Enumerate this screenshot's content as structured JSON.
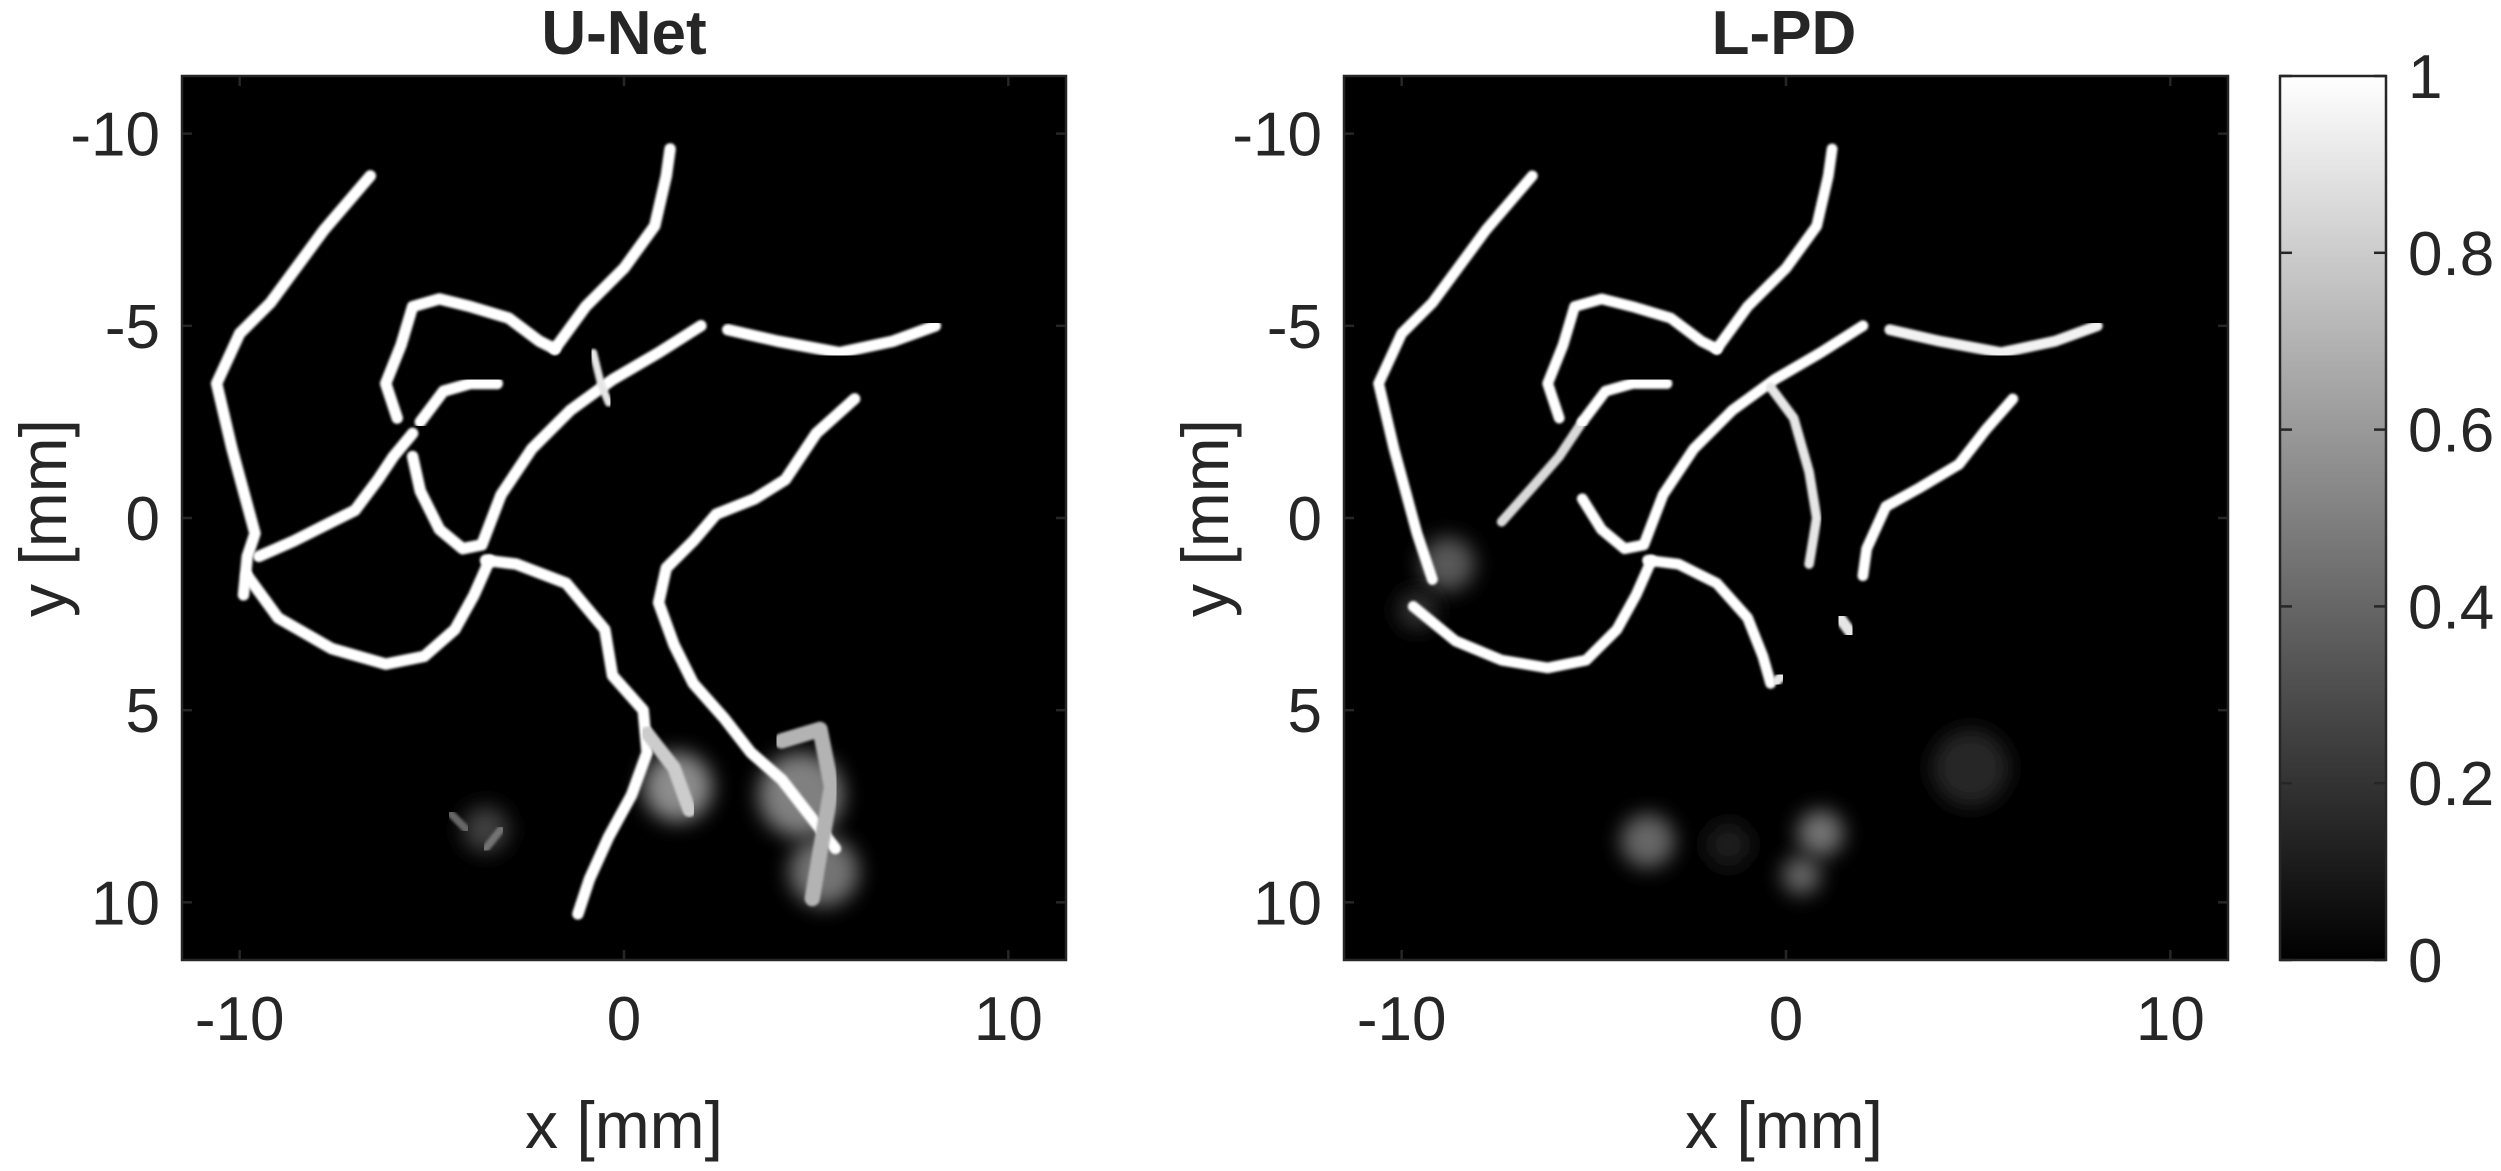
{
  "figure": {
    "background": "#ffffff",
    "image_bg": "#000000",
    "vessel_color": "#ffffff",
    "axis_color": "#262626"
  },
  "chart_data": [
    {
      "type": "heatmap",
      "title": "U-Net",
      "xlabel": "x [mm]",
      "ylabel": "y [mm]",
      "xlim": [
        -11.5,
        11.5
      ],
      "ylim": [
        -11.5,
        11.5
      ],
      "y_reversed": true,
      "xticks": [
        -10,
        0,
        10
      ],
      "xtick_labels": [
        "-10",
        "0",
        "10"
      ],
      "yticks": [
        -10,
        -5,
        0,
        5,
        10
      ],
      "ytick_labels": [
        "-10",
        "-5",
        "0",
        "5",
        "10"
      ],
      "grid": false,
      "colormap": "gray",
      "clim": [
        0,
        1
      ],
      "vessels": [
        {
          "points": [
            [
              -6.6,
              -8.9
            ],
            [
              -7.8,
              -7.5
            ],
            [
              -9.2,
              -5.6
            ],
            [
              -10.0,
              -4.8
            ],
            [
              -10.6,
              -3.5
            ],
            [
              -10.2,
              -1.8
            ],
            [
              -9.6,
              0.4
            ],
            [
              -9.8,
              1.0
            ],
            [
              -9.9,
              2.0
            ]
          ],
          "intensity": 1.0,
          "width": 0.3
        },
        {
          "points": [
            [
              -9.5,
              1.0
            ],
            [
              -8.6,
              0.6
            ],
            [
              -7.8,
              0.2
            ],
            [
              -7.0,
              -0.2
            ],
            [
              -6.4,
              -1.0
            ],
            [
              -6.0,
              -1.6
            ],
            [
              -5.5,
              -2.2
            ]
          ],
          "intensity": 1.0,
          "width": 0.3
        },
        {
          "points": [
            [
              -9.8,
              1.5
            ],
            [
              -9.0,
              2.6
            ],
            [
              -7.6,
              3.4
            ],
            [
              -6.2,
              3.8
            ],
            [
              -5.2,
              3.6
            ],
            [
              -4.4,
              2.9
            ],
            [
              -3.9,
              2.0
            ],
            [
              -3.5,
              1.1
            ]
          ],
          "intensity": 1.0,
          "width": 0.3
        },
        {
          "points": [
            [
              -3.6,
              1.1
            ],
            [
              -2.8,
              1.2
            ],
            [
              -1.5,
              1.7
            ],
            [
              -0.5,
              2.9
            ],
            [
              -0.3,
              4.1
            ],
            [
              0.5,
              5.0
            ],
            [
              0.6,
              6.1
            ],
            [
              0.2,
              7.2
            ],
            [
              -0.4,
              8.3
            ],
            [
              -0.9,
              9.4
            ],
            [
              -1.2,
              10.3
            ]
          ],
          "intensity": 1.0,
          "width": 0.3
        },
        {
          "points": [
            [
              -5.5,
              -1.6
            ],
            [
              -5.3,
              -0.7
            ],
            [
              -4.8,
              0.3
            ],
            [
              -4.2,
              0.8
            ],
            [
              -3.7,
              0.7
            ],
            [
              -3.2,
              -0.6
            ],
            [
              -2.4,
              -1.8
            ],
            [
              -1.4,
              -2.8
            ],
            [
              -0.3,
              -3.6
            ],
            [
              0.9,
              -4.3
            ],
            [
              2.0,
              -5.0
            ]
          ],
          "intensity": 1.0,
          "width": 0.3
        },
        {
          "points": [
            [
              -5.3,
              -2.5
            ],
            [
              -4.7,
              -3.3
            ],
            [
              -4.0,
              -3.5
            ],
            [
              -3.3,
              -3.5
            ]
          ],
          "intensity": 1.0,
          "width": 0.3
        },
        {
          "points": [
            [
              -5.9,
              -2.6
            ],
            [
              -6.2,
              -3.5
            ],
            [
              -5.8,
              -4.5
            ],
            [
              -5.5,
              -5.5
            ],
            [
              -4.8,
              -5.7
            ],
            [
              -4.0,
              -5.5
            ],
            [
              -3.0,
              -5.2
            ],
            [
              -2.2,
              -4.6
            ],
            [
              -1.8,
              -4.4
            ]
          ],
          "intensity": 1.0,
          "width": 0.3
        },
        {
          "points": [
            [
              -1.8,
              -4.4
            ],
            [
              -1.0,
              -5.5
            ],
            [
              0.0,
              -6.5
            ],
            [
              0.8,
              -7.6
            ],
            [
              1.1,
              -8.9
            ],
            [
              1.2,
              -9.6
            ]
          ],
          "intensity": 1.0,
          "width": 0.3
        },
        {
          "points": [
            [
              -0.8,
              -4.3
            ],
            [
              -0.6,
              -3.5
            ],
            [
              -0.4,
              -3.0
            ]
          ],
          "intensity": 0.9,
          "width": 0.2
        },
        {
          "points": [
            [
              2.7,
              -4.9
            ],
            [
              4.0,
              -4.6
            ],
            [
              5.6,
              -4.3
            ],
            [
              7.0,
              -4.6
            ],
            [
              8.1,
              -5.0
            ]
          ],
          "intensity": 1.0,
          "width": 0.3
        },
        {
          "points": [
            [
              6.0,
              -3.1
            ],
            [
              5.0,
              -2.2
            ],
            [
              4.2,
              -1.0
            ],
            [
              3.4,
              -0.5
            ],
            [
              2.4,
              -0.1
            ],
            [
              1.8,
              0.6
            ],
            [
              1.1,
              1.3
            ],
            [
              0.9,
              2.2
            ],
            [
              1.3,
              3.3
            ],
            [
              1.8,
              4.3
            ],
            [
              2.6,
              5.2
            ],
            [
              3.3,
              6.1
            ],
            [
              4.1,
              6.8
            ],
            [
              4.8,
              7.7
            ],
            [
              5.5,
              8.6
            ]
          ],
          "intensity": 1.0,
          "width": 0.3
        },
        {
          "points": [
            [
              0.6,
              5.6
            ],
            [
              1.3,
              6.5
            ],
            [
              1.7,
              7.6
            ]
          ],
          "intensity": 0.8,
          "width": 0.35
        },
        {
          "points": [
            [
              4.1,
              5.8
            ],
            [
              5.1,
              5.5
            ],
            [
              5.4,
              7.0
            ],
            [
              5.1,
              8.7
            ],
            [
              4.9,
              9.9
            ]
          ],
          "intensity": 0.7,
          "width": 0.4
        },
        {
          "points": [
            [
              -3.2,
              8.1
            ],
            [
              -3.6,
              8.6
            ]
          ],
          "intensity": 0.45,
          "width": 0.2
        },
        {
          "points": [
            [
              -4.5,
              7.7
            ],
            [
              -4.1,
              8.1
            ]
          ],
          "intensity": 0.4,
          "width": 0.2
        }
      ],
      "blobs": [
        {
          "center": [
            1.4,
            7.0
          ],
          "radius": 0.9,
          "intensity": 0.55
        },
        {
          "center": [
            4.6,
            7.2
          ],
          "radius": 1.1,
          "intensity": 0.5
        },
        {
          "center": [
            5.2,
            9.2
          ],
          "radius": 0.9,
          "intensity": 0.45
        },
        {
          "center": [
            -3.6,
            8.1
          ],
          "radius": 0.6,
          "intensity": 0.25
        }
      ]
    },
    {
      "type": "heatmap",
      "title": "L-PD",
      "xlabel": "x [mm]",
      "ylabel": "y [mm]",
      "xlim": [
        -11.5,
        11.5
      ],
      "ylim": [
        -11.5,
        11.5
      ],
      "y_reversed": true,
      "xticks": [
        -10,
        0,
        10
      ],
      "xtick_labels": [
        "-10",
        "0",
        "10"
      ],
      "yticks": [
        -10,
        -5,
        0,
        5,
        10
      ],
      "ytick_labels": [
        "-10",
        "-5",
        "0",
        "5",
        "10"
      ],
      "grid": false,
      "colormap": "gray",
      "clim": [
        0,
        1
      ],
      "vessels": [
        {
          "points": [
            [
              -6.6,
              -8.9
            ],
            [
              -7.8,
              -7.5
            ],
            [
              -9.2,
              -5.6
            ],
            [
              -10.0,
              -4.8
            ],
            [
              -10.6,
              -3.5
            ],
            [
              -10.2,
              -1.8
            ],
            [
              -9.6,
              0.4
            ],
            [
              -9.2,
              1.6
            ]
          ],
          "intensity": 1.0,
          "width": 0.28
        },
        {
          "points": [
            [
              -9.7,
              2.3
            ],
            [
              -8.6,
              3.2
            ],
            [
              -7.4,
              3.7
            ],
            [
              -6.2,
              3.9
            ],
            [
              -5.2,
              3.7
            ],
            [
              -4.4,
              2.9
            ],
            [
              -3.9,
              2.0
            ],
            [
              -3.5,
              1.1
            ]
          ],
          "intensity": 1.0,
          "width": 0.28
        },
        {
          "points": [
            [
              -3.6,
              1.1
            ],
            [
              -2.8,
              1.2
            ],
            [
              -1.8,
              1.7
            ],
            [
              -1.0,
              2.6
            ],
            [
              -0.6,
              3.6
            ],
            [
              -0.4,
              4.3
            ]
          ],
          "intensity": 1.0,
          "width": 0.28
        },
        {
          "points": [
            [
              -5.3,
              -0.5
            ],
            [
              -4.8,
              0.3
            ],
            [
              -4.2,
              0.8
            ],
            [
              -3.7,
              0.7
            ],
            [
              -3.2,
              -0.6
            ],
            [
              -2.4,
              -1.8
            ],
            [
              -1.4,
              -2.8
            ],
            [
              -0.3,
              -3.6
            ],
            [
              0.9,
              -4.3
            ],
            [
              2.0,
              -5.0
            ]
          ],
          "intensity": 1.0,
          "width": 0.28
        },
        {
          "points": [
            [
              -7.4,
              0.1
            ],
            [
              -6.6,
              -0.8
            ],
            [
              -5.9,
              -1.6
            ],
            [
              -5.3,
              -2.5
            ]
          ],
          "intensity": 0.85,
          "width": 0.25
        },
        {
          "points": [
            [
              -5.3,
              -2.5
            ],
            [
              -4.7,
              -3.3
            ],
            [
              -4.0,
              -3.5
            ],
            [
              -3.1,
              -3.5
            ]
          ],
          "intensity": 1.0,
          "width": 0.28
        },
        {
          "points": [
            [
              -5.9,
              -2.6
            ],
            [
              -6.2,
              -3.5
            ],
            [
              -5.8,
              -4.5
            ],
            [
              -5.5,
              -5.5
            ],
            [
              -4.8,
              -5.7
            ],
            [
              -4.0,
              -5.5
            ],
            [
              -3.0,
              -5.2
            ],
            [
              -2.2,
              -4.6
            ],
            [
              -1.8,
              -4.4
            ]
          ],
          "intensity": 1.0,
          "width": 0.28
        },
        {
          "points": [
            [
              -1.8,
              -4.4
            ],
            [
              -1.0,
              -5.5
            ],
            [
              0.0,
              -6.5
            ],
            [
              0.8,
              -7.6
            ],
            [
              1.1,
              -8.9
            ],
            [
              1.2,
              -9.6
            ]
          ],
          "intensity": 1.0,
          "width": 0.28
        },
        {
          "points": [
            [
              -0.4,
              -3.4
            ],
            [
              0.2,
              -2.6
            ],
            [
              0.6,
              -1.2
            ],
            [
              0.8,
              0.0
            ],
            [
              0.6,
              1.2
            ]
          ],
          "intensity": 0.9,
          "width": 0.25
        },
        {
          "points": [
            [
              2.7,
              -4.9
            ],
            [
              4.0,
              -4.6
            ],
            [
              5.6,
              -4.3
            ],
            [
              7.0,
              -4.6
            ],
            [
              8.1,
              -5.0
            ]
          ],
          "intensity": 0.95,
          "width": 0.28
        },
        {
          "points": [
            [
              5.9,
              -3.1
            ],
            [
              5.2,
              -2.3
            ],
            [
              4.5,
              -1.4
            ],
            [
              3.5,
              -0.8
            ],
            [
              2.6,
              -0.3
            ],
            [
              2.1,
              0.8
            ],
            [
              2.0,
              1.5
            ]
          ],
          "intensity": 1.0,
          "width": 0.28
        },
        {
          "points": [
            [
              1.4,
              2.6
            ],
            [
              1.7,
              3.0
            ]
          ],
          "intensity": 0.9,
          "width": 0.3
        },
        {
          "points": [
            [
              -0.3,
              4.3
            ],
            [
              -0.1,
              4.1
            ]
          ],
          "intensity": 0.9,
          "width": 0.25
        }
      ],
      "blobs": [
        {
          "center": [
            -8.8,
            1.2
          ],
          "radius": 0.7,
          "intensity": 0.35
        },
        {
          "center": [
            -3.6,
            8.4
          ],
          "radius": 0.7,
          "intensity": 0.4
        },
        {
          "center": [
            0.9,
            8.2
          ],
          "radius": 0.6,
          "intensity": 0.45
        },
        {
          "center": [
            0.4,
            9.3
          ],
          "radius": 0.5,
          "intensity": 0.4
        },
        {
          "center": [
            4.8,
            6.5
          ],
          "radius": 1.0,
          "intensity": 0.15
        },
        {
          "center": [
            -1.5,
            8.5
          ],
          "radius": 0.6,
          "intensity": 0.12
        },
        {
          "center": [
            -9.6,
            2.4
          ],
          "radius": 0.5,
          "intensity": 0.2
        }
      ]
    }
  ],
  "colorbar": {
    "colormap": "gray",
    "min": 0,
    "max": 1,
    "ticks": [
      0,
      0.2,
      0.4,
      0.6,
      0.8,
      1
    ],
    "tick_labels": [
      "0",
      "0.2",
      "0.4",
      "0.6",
      "0.8",
      "1"
    ]
  }
}
